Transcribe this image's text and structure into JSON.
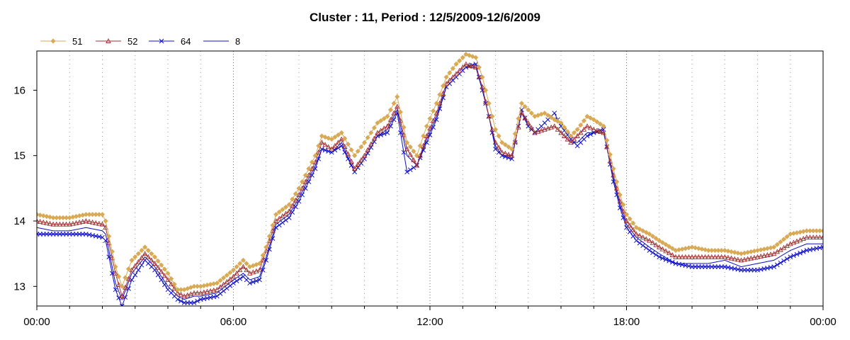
{
  "chart_data": {
    "type": "line",
    "title": "Cluster : 11, Period : 12/5/2009-12/6/2009",
    "xlabel": "",
    "ylabel": "",
    "x_ticks": [
      "00:00",
      "06:00",
      "12:00",
      "18:00",
      "00:00"
    ],
    "x_hours": [
      0,
      1,
      2,
      3,
      4,
      5,
      6,
      7,
      8,
      9,
      10,
      11,
      12,
      13,
      14,
      15,
      16,
      17,
      18,
      19,
      20,
      21,
      22,
      23,
      24
    ],
    "xlim_hours": [
      0,
      24
    ],
    "ylim": [
      12.7,
      16.6
    ],
    "y_ticks": [
      13,
      14,
      15,
      16
    ],
    "grid": true,
    "legend_position": "top-left",
    "series": [
      {
        "name": "51",
        "color": "#D8AA55",
        "marker": "diamond",
        "hours": [
          0,
          0.5,
          1,
          1.5,
          2,
          2.1,
          2.4,
          2.6,
          2.9,
          3.3,
          3.6,
          4,
          4.3,
          4.5,
          4.8,
          5,
          5.5,
          6,
          6.3,
          6.5,
          6.8,
          7,
          7.3,
          7.7,
          8,
          8.5,
          8.7,
          9,
          9.3,
          9.7,
          10,
          10.4,
          10.7,
          11,
          11.3,
          11.6,
          11.9,
          12.2,
          12.5,
          12.8,
          13.1,
          13.4,
          13.6,
          13.8,
          14,
          14.2,
          14.5,
          14.8,
          15,
          15.2,
          15.5,
          15.8,
          16,
          16.3,
          16.5,
          16.8,
          17,
          17.3,
          17.6,
          17.8,
          18,
          18.3,
          18.7,
          19,
          19.5,
          20,
          20.5,
          21,
          21.5,
          22,
          22.5,
          23,
          23.5,
          24
        ],
        "values": [
          14.1,
          14.05,
          14.05,
          14.1,
          14.1,
          14.0,
          13.3,
          13.0,
          13.4,
          13.6,
          13.45,
          13.2,
          12.95,
          12.95,
          13.0,
          13.0,
          13.05,
          13.25,
          13.4,
          13.3,
          13.35,
          13.6,
          14.1,
          14.25,
          14.5,
          15.0,
          15.3,
          15.25,
          15.35,
          15.0,
          15.2,
          15.5,
          15.6,
          15.9,
          15.2,
          15.0,
          15.45,
          15.8,
          16.2,
          16.4,
          16.55,
          16.5,
          16.2,
          15.8,
          15.4,
          15.2,
          15.1,
          15.8,
          15.7,
          15.6,
          15.65,
          15.55,
          15.5,
          15.3,
          15.4,
          15.6,
          15.55,
          15.45,
          14.8,
          14.4,
          14.1,
          13.9,
          13.8,
          13.7,
          13.55,
          13.6,
          13.55,
          13.55,
          13.5,
          13.55,
          13.6,
          13.8,
          13.85,
          13.85
        ]
      },
      {
        "name": "52",
        "color": "#A03030",
        "marker": "triangle",
        "hours": [
          0,
          0.5,
          1,
          1.5,
          2,
          2.1,
          2.4,
          2.6,
          2.9,
          3.3,
          3.6,
          4,
          4.3,
          4.5,
          4.8,
          5,
          5.5,
          6,
          6.3,
          6.5,
          6.8,
          7,
          7.3,
          7.7,
          8,
          8.5,
          8.7,
          9,
          9.3,
          9.7,
          10,
          10.4,
          10.7,
          11,
          11.3,
          11.6,
          11.9,
          12.2,
          12.5,
          12.8,
          13.1,
          13.4,
          13.6,
          13.8,
          14,
          14.2,
          14.5,
          14.8,
          15,
          15.2,
          15.5,
          15.8,
          16,
          16.3,
          16.5,
          16.8,
          17,
          17.3,
          17.6,
          17.8,
          18,
          18.3,
          18.7,
          19,
          19.5,
          20,
          20.5,
          21,
          21.5,
          22,
          22.5,
          23,
          23.5,
          24
        ],
        "values": [
          14.0,
          13.95,
          13.95,
          14.0,
          13.95,
          13.9,
          13.2,
          12.85,
          13.25,
          13.5,
          13.35,
          13.1,
          12.9,
          12.85,
          12.9,
          12.9,
          12.95,
          13.15,
          13.3,
          13.2,
          13.25,
          13.55,
          14.0,
          14.15,
          14.4,
          14.9,
          15.2,
          15.1,
          15.25,
          14.8,
          15.0,
          15.35,
          15.45,
          15.75,
          15.1,
          14.85,
          15.3,
          15.65,
          16.1,
          16.25,
          16.4,
          16.35,
          16.05,
          15.6,
          15.2,
          15.05,
          15.0,
          15.65,
          15.5,
          15.35,
          15.4,
          15.45,
          15.35,
          15.2,
          15.3,
          15.45,
          15.4,
          15.35,
          14.7,
          14.3,
          14.0,
          13.8,
          13.7,
          13.6,
          13.45,
          13.45,
          13.45,
          13.45,
          13.4,
          13.45,
          13.5,
          13.65,
          13.75,
          13.75
        ]
      },
      {
        "name": "64",
        "color": "#1010C8",
        "marker": "x",
        "hours": [
          0,
          0.5,
          1,
          1.5,
          2,
          2.1,
          2.4,
          2.6,
          2.9,
          3.3,
          3.6,
          4,
          4.3,
          4.5,
          4.8,
          5,
          5.5,
          6,
          6.3,
          6.5,
          6.8,
          7,
          7.3,
          7.7,
          8,
          8.5,
          8.7,
          9,
          9.3,
          9.7,
          10,
          10.4,
          10.7,
          11,
          11.3,
          11.6,
          11.9,
          12.2,
          12.5,
          12.8,
          13.1,
          13.4,
          13.6,
          13.8,
          14,
          14.2,
          14.5,
          14.8,
          15,
          15.2,
          15.5,
          15.8,
          16,
          16.3,
          16.5,
          16.8,
          17,
          17.3,
          17.6,
          17.8,
          18,
          18.3,
          18.7,
          19,
          19.5,
          20,
          20.5,
          21,
          21.5,
          22,
          22.5,
          23,
          23.5,
          24
        ],
        "values": [
          13.8,
          13.8,
          13.8,
          13.8,
          13.75,
          13.7,
          12.95,
          12.7,
          13.1,
          13.4,
          13.25,
          12.95,
          12.8,
          12.75,
          12.75,
          12.8,
          12.85,
          13.05,
          13.15,
          13.05,
          13.1,
          13.4,
          13.9,
          14.05,
          14.3,
          14.8,
          15.1,
          15.05,
          15.15,
          14.75,
          14.95,
          15.3,
          15.35,
          15.65,
          14.75,
          14.85,
          15.2,
          15.55,
          16.05,
          16.2,
          16.35,
          16.4,
          16.0,
          15.6,
          15.1,
          15.0,
          14.95,
          15.7,
          15.45,
          15.35,
          15.5,
          15.65,
          15.45,
          15.25,
          15.15,
          15.3,
          15.35,
          15.4,
          14.6,
          14.2,
          13.9,
          13.7,
          13.55,
          13.45,
          13.35,
          13.3,
          13.3,
          13.3,
          13.25,
          13.25,
          13.3,
          13.45,
          13.55,
          13.6
        ]
      },
      {
        "name": "8",
        "color": "#1010C8",
        "marker": "none",
        "hours": [
          0,
          0.5,
          1,
          1.5,
          2,
          2.1,
          2.4,
          2.6,
          2.9,
          3.3,
          3.6,
          4,
          4.3,
          4.5,
          4.8,
          5,
          5.5,
          6,
          6.3,
          6.5,
          6.8,
          7,
          7.3,
          7.7,
          8,
          8.5,
          8.7,
          9,
          9.3,
          9.7,
          10,
          10.4,
          10.7,
          11,
          11.3,
          11.6,
          11.9,
          12.2,
          12.5,
          12.8,
          13.1,
          13.4,
          13.6,
          13.8,
          14,
          14.2,
          14.5,
          14.8,
          15,
          15.2,
          15.5,
          15.8,
          16,
          16.3,
          16.5,
          16.8,
          17,
          17.3,
          17.6,
          17.8,
          18,
          18.3,
          18.7,
          19,
          19.5,
          20,
          20.5,
          21,
          21.5,
          22,
          22.5,
          23,
          23.5,
          24
        ],
        "values": [
          13.9,
          13.85,
          13.85,
          13.9,
          13.85,
          13.8,
          13.05,
          12.8,
          13.2,
          13.45,
          13.3,
          13.0,
          12.85,
          12.8,
          12.85,
          12.85,
          12.9,
          13.1,
          13.2,
          13.1,
          13.15,
          13.45,
          13.95,
          14.1,
          14.35,
          14.85,
          15.1,
          15.05,
          15.2,
          14.75,
          14.95,
          15.3,
          15.4,
          15.7,
          15.0,
          14.85,
          15.25,
          15.6,
          16.05,
          16.2,
          16.35,
          16.35,
          16.0,
          15.6,
          15.15,
          15.0,
          15.0,
          15.65,
          15.45,
          15.35,
          15.4,
          15.45,
          15.35,
          15.2,
          15.2,
          15.35,
          15.35,
          15.35,
          14.65,
          14.25,
          13.95,
          13.75,
          13.6,
          13.5,
          13.35,
          13.35,
          13.35,
          13.4,
          13.3,
          13.35,
          13.4,
          13.55,
          13.65,
          13.65
        ]
      }
    ]
  }
}
